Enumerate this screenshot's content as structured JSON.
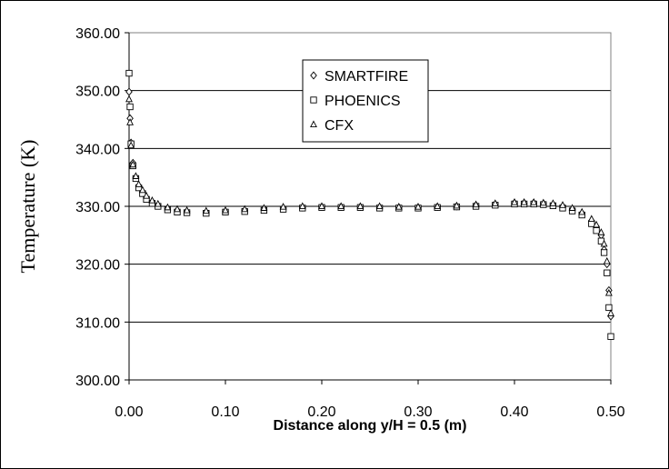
{
  "chart_data": {
    "type": "scatter",
    "title": "",
    "xlabel": "Distance along y/H = 0.5 (m)",
    "ylabel": "Temperature (K)",
    "xlim": [
      0.0,
      0.5
    ],
    "ylim": [
      300,
      360
    ],
    "x_ticks": [
      "0.00",
      "0.10",
      "0.20",
      "0.30",
      "0.40",
      "0.50"
    ],
    "y_ticks": [
      "300.00",
      "310.00",
      "320.00",
      "330.00",
      "340.00",
      "350.00",
      "360.00"
    ],
    "grid": "horizontal",
    "legend_position": "top-center",
    "series": [
      {
        "name": "SMARTFIRE",
        "marker": "diamond",
        "x": [
          0.0,
          0.001,
          0.002,
          0.004,
          0.007,
          0.01,
          0.014,
          0.018,
          0.024,
          0.03,
          0.04,
          0.05,
          0.06,
          0.08,
          0.1,
          0.12,
          0.14,
          0.16,
          0.18,
          0.2,
          0.22,
          0.24,
          0.26,
          0.28,
          0.3,
          0.32,
          0.34,
          0.36,
          0.38,
          0.4,
          0.41,
          0.42,
          0.43,
          0.44,
          0.45,
          0.46,
          0.47,
          0.48,
          0.485,
          0.49,
          0.493,
          0.496,
          0.498,
          0.5
        ],
        "y": [
          349.8,
          345.2,
          341.0,
          337.5,
          335.0,
          333.5,
          332.5,
          331.5,
          330.8,
          330.2,
          329.6,
          329.3,
          329.1,
          329.0,
          329.1,
          329.3,
          329.5,
          329.7,
          329.8,
          329.9,
          329.9,
          329.9,
          329.8,
          329.8,
          329.8,
          329.9,
          330.0,
          330.2,
          330.4,
          330.6,
          330.6,
          330.6,
          330.5,
          330.3,
          330.0,
          329.5,
          328.8,
          327.5,
          326.5,
          325.0,
          322.5,
          320.0,
          315.5,
          311.0
        ]
      },
      {
        "name": "PHOENICS",
        "marker": "square",
        "x": [
          0.0,
          0.001,
          0.002,
          0.004,
          0.007,
          0.01,
          0.014,
          0.018,
          0.024,
          0.03,
          0.04,
          0.05,
          0.06,
          0.08,
          0.1,
          0.12,
          0.14,
          0.16,
          0.18,
          0.2,
          0.22,
          0.24,
          0.26,
          0.28,
          0.3,
          0.32,
          0.34,
          0.36,
          0.38,
          0.4,
          0.41,
          0.42,
          0.43,
          0.44,
          0.45,
          0.46,
          0.47,
          0.48,
          0.485,
          0.49,
          0.493,
          0.496,
          0.498,
          0.5
        ],
        "y": [
          353.0,
          347.2,
          340.8,
          337.0,
          334.8,
          333.2,
          332.2,
          331.2,
          330.5,
          330.0,
          329.4,
          329.0,
          328.9,
          328.8,
          329.0,
          329.1,
          329.3,
          329.5,
          329.7,
          329.8,
          329.8,
          329.8,
          329.7,
          329.7,
          329.7,
          329.8,
          329.9,
          330.0,
          330.2,
          330.4,
          330.4,
          330.4,
          330.3,
          330.1,
          329.7,
          329.2,
          328.5,
          327.0,
          325.8,
          324.0,
          322.0,
          318.5,
          312.5,
          307.5
        ]
      },
      {
        "name": "CFX",
        "marker": "triangle",
        "x": [
          0.0,
          0.001,
          0.002,
          0.004,
          0.007,
          0.01,
          0.014,
          0.018,
          0.024,
          0.03,
          0.04,
          0.05,
          0.06,
          0.08,
          0.1,
          0.12,
          0.14,
          0.16,
          0.18,
          0.2,
          0.22,
          0.24,
          0.26,
          0.28,
          0.3,
          0.32,
          0.34,
          0.36,
          0.38,
          0.4,
          0.41,
          0.42,
          0.43,
          0.44,
          0.45,
          0.46,
          0.47,
          0.48,
          0.485,
          0.49,
          0.493,
          0.496,
          0.498,
          0.5
        ],
        "y": [
          348.5,
          344.5,
          340.5,
          337.2,
          335.2,
          333.8,
          332.8,
          331.8,
          331.0,
          330.4,
          329.8,
          329.5,
          329.3,
          329.2,
          329.3,
          329.5,
          329.7,
          329.9,
          330.0,
          330.0,
          330.0,
          330.0,
          330.0,
          329.9,
          329.9,
          330.0,
          330.1,
          330.3,
          330.5,
          330.7,
          330.7,
          330.7,
          330.6,
          330.5,
          330.2,
          329.7,
          329.0,
          327.8,
          326.8,
          325.5,
          323.5,
          320.5,
          315.0,
          311.5
        ]
      }
    ]
  }
}
